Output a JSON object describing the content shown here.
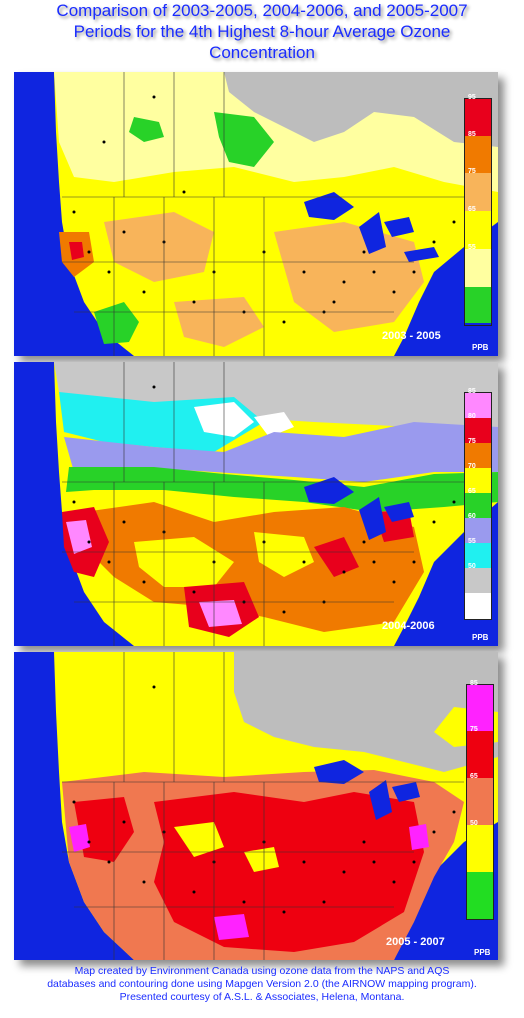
{
  "title": {
    "line1": "Comparison of 2003-2005, 2004-2006, and 2005-2007",
    "line2": "Periods for the 4th Highest 8-hour Average Ozone",
    "line3": "Concentration"
  },
  "maps": [
    {
      "period": "2003 - 2005",
      "unit": "PPB",
      "legend": [
        {
          "color": "#e8001c",
          "label": "95"
        },
        {
          "color": "#f07a00",
          "label": "85"
        },
        {
          "color": "#f8b45a",
          "label": "75"
        },
        {
          "color": "#ffff00",
          "label": "65"
        },
        {
          "color": "#ffffa0",
          "label": "55"
        },
        {
          "color": "#28d228",
          "label": ""
        }
      ]
    },
    {
      "period": "2004-2006",
      "unit": "PPB",
      "legend": [
        {
          "color": "#ff88ff",
          "label": "85"
        },
        {
          "color": "#e8001c",
          "label": "80"
        },
        {
          "color": "#f07a00",
          "label": "75"
        },
        {
          "color": "#ffff00",
          "label": "70"
        },
        {
          "color": "#28d228",
          "label": "65"
        },
        {
          "color": "#9a9aee",
          "label": "60"
        },
        {
          "color": "#20f0f0",
          "label": "55"
        },
        {
          "color": "#c8c8c8",
          "label": "50"
        },
        {
          "color": "#ffffff",
          "label": ""
        }
      ]
    },
    {
      "period": "2005 - 2007",
      "unit": "PPB",
      "legend": [
        {
          "color": "#ff22ff",
          "label": "85"
        },
        {
          "color": "#ee0010",
          "label": "75"
        },
        {
          "color": "#f07850",
          "label": "65"
        },
        {
          "color": "#ffff00",
          "label": "50"
        },
        {
          "color": "#22dd22",
          "label": ""
        }
      ]
    }
  ],
  "footer": {
    "line1": "Map created by Environment Canada using ozone data from the NAPS and AQS",
    "line2": "databases and contouring done using Mapgen Version 2.0  (the AIRNOW mapping program).",
    "line3": "Presented courtesy of A.S.L. & Associates, Helena, Montana."
  }
}
